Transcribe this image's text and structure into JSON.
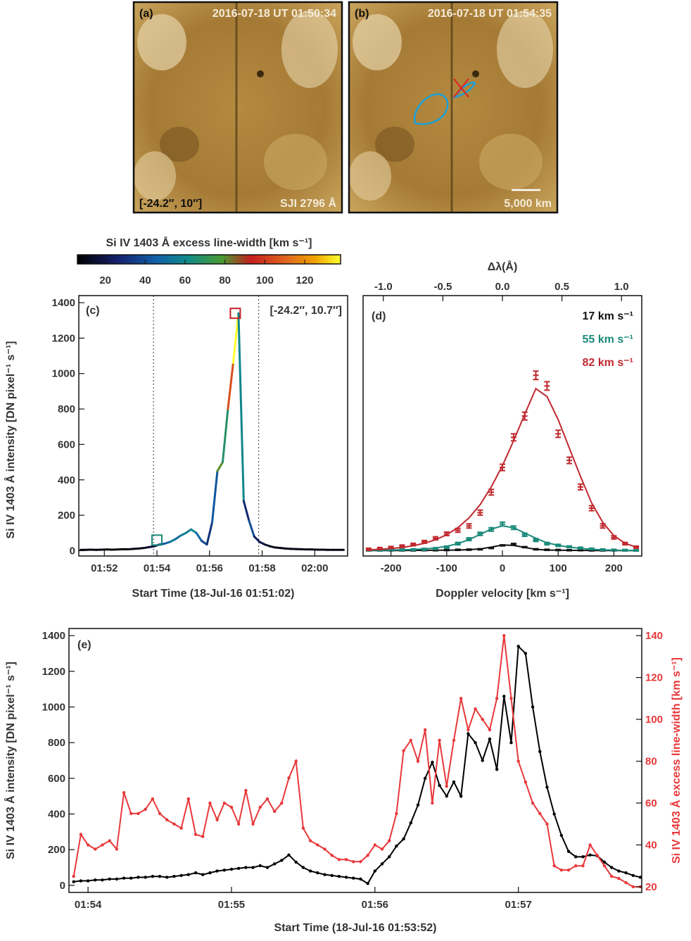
{
  "images": [
    {
      "label": "(a)",
      "time": "2016-07-18 UT 01:50:34",
      "coords": "[-24.2″, 10″]",
      "channel": "SJI 2796 Å"
    },
    {
      "label": "(b)",
      "time": "2016-07-18 UT 01:54:35",
      "scale": "5,000 km"
    }
  ],
  "colorbar": {
    "title": "Si IV 1403 Å excess line-width [km s⁻¹]",
    "lim": [
      6,
      138
    ],
    "ticks": [
      20,
      40,
      60,
      80,
      100,
      120
    ]
  },
  "chart_data": [
    {
      "type": "colorline",
      "label": "(c)",
      "annotation": "[-24.2″, 10.7″]",
      "ylabel": "Si IV 1403 Å intensity [DN pixel⁻¹ s⁻¹]",
      "xlabel": "Start Time (18-Jul-16 01:51:02)",
      "x": [
        51.1,
        51.3,
        51.5,
        51.7,
        51.9,
        52.1,
        52.3,
        52.5,
        52.7,
        52.9,
        53.1,
        53.3,
        53.5,
        53.7,
        53.9,
        54.1,
        54.3,
        54.5,
        54.7,
        54.9,
        55.1,
        55.3,
        55.5,
        55.7,
        55.9,
        56.1,
        56.3,
        56.5,
        56.7,
        56.9,
        57.1,
        57.3,
        57.5,
        57.7,
        57.9,
        58.1,
        58.3,
        58.5,
        58.7,
        58.9,
        59.1,
        59.3,
        59.5,
        59.7,
        59.9,
        60.1,
        60.3,
        60.5,
        60.7,
        60.9,
        61.1
      ],
      "values": [
        5,
        5,
        6,
        5,
        6,
        7,
        6,
        7,
        8,
        8,
        10,
        12,
        15,
        20,
        25,
        35,
        40,
        50,
        65,
        85,
        100,
        120,
        100,
        55,
        35,
        160,
        450,
        500,
        800,
        1060,
        1340,
        280,
        170,
        80,
        50,
        35,
        25,
        18,
        15,
        12,
        10,
        9,
        8,
        7,
        7,
        6,
        6,
        5,
        5,
        5,
        5
      ],
      "line_width": [
        8,
        8,
        8,
        8,
        8,
        8,
        8,
        8,
        8,
        8,
        10,
        10,
        12,
        15,
        20,
        40,
        45,
        55,
        50,
        55,
        58,
        60,
        48,
        38,
        32,
        42,
        80,
        68,
        105,
        140,
        60,
        28,
        40,
        24,
        20,
        15,
        12,
        10,
        10,
        10,
        10,
        10,
        10,
        10,
        10,
        10,
        10,
        10,
        10,
        10,
        10
      ],
      "xlim": [
        51.03,
        61.25
      ],
      "xticks": [
        {
          "value": 52,
          "label": "01:52"
        },
        {
          "value": 54,
          "label": "01:54"
        },
        {
          "value": 56,
          "label": "01:56"
        },
        {
          "value": 58,
          "label": "01:58"
        },
        {
          "value": 60,
          "label": "02:00"
        }
      ],
      "ylim": [
        -30,
        1440
      ],
      "yticks": [
        0,
        200,
        400,
        600,
        800,
        1000,
        1200,
        1400
      ],
      "vlines": [
        53.87,
        57.87
      ],
      "markers": [
        {
          "x": 54.0,
          "y": 60,
          "color": "#1a8a7a"
        },
        {
          "x": 56.98,
          "y": 1340,
          "color": "#c8202a"
        }
      ]
    },
    {
      "type": "errorbar",
      "label": "(d)",
      "xlabel": "Doppler velocity [km s⁻¹]",
      "x2label": "Δλ(Å)",
      "x": [
        -240,
        -220,
        -200,
        -180,
        -160,
        -140,
        -120,
        -100,
        -80,
        -60,
        -40,
        -20,
        0,
        20,
        40,
        60,
        80,
        100,
        120,
        140,
        160,
        180,
        200,
        220,
        240
      ],
      "series": [
        {
          "name": "17 km s⁻¹",
          "color": "#111111",
          "values": [
            2,
            2,
            2,
            2,
            2,
            3,
            3,
            4,
            5,
            6,
            8,
            15,
            30,
            38,
            20,
            8,
            5,
            4,
            3,
            3,
            2,
            2,
            2,
            2,
            2
          ],
          "errors": [
            3,
            3,
            3,
            3,
            3,
            3,
            3,
            3,
            3,
            3,
            3,
            3,
            3,
            3,
            3,
            3,
            3,
            3,
            3,
            3,
            3,
            3,
            3,
            3,
            3
          ],
          "fit": [
            1,
            1,
            1,
            1,
            2,
            2,
            3,
            3,
            4,
            6,
            10,
            20,
            32,
            30,
            18,
            8,
            4,
            3,
            2,
            2,
            1,
            1,
            1,
            1,
            1
          ]
        },
        {
          "name": "55 km s⁻¹",
          "color": "#1a8a7a",
          "values": [
            3,
            3,
            4,
            5,
            6,
            8,
            12,
            20,
            40,
            65,
            95,
            120,
            150,
            130,
            90,
            60,
            40,
            30,
            22,
            15,
            10,
            6,
            4,
            3,
            2
          ],
          "errors": [
            4,
            4,
            4,
            4,
            4,
            5,
            5,
            6,
            7,
            8,
            9,
            10,
            11,
            10,
            9,
            8,
            7,
            6,
            5,
            5,
            4,
            4,
            4,
            4,
            4
          ],
          "fit": [
            2,
            3,
            4,
            5,
            7,
            10,
            15,
            25,
            40,
            62,
            92,
            122,
            140,
            130,
            100,
            70,
            45,
            30,
            20,
            13,
            8,
            5,
            3,
            2,
            1
          ]
        },
        {
          "name": "82 km s⁻¹",
          "color": "#c0282e",
          "values": [
            8,
            12,
            18,
            25,
            35,
            50,
            70,
            95,
            115,
            140,
            215,
            330,
            470,
            640,
            760,
            990,
            930,
            660,
            510,
            360,
            240,
            140,
            75,
            40,
            20
          ],
          "errors": [
            6,
            6,
            6,
            7,
            7,
            8,
            9,
            10,
            11,
            12,
            14,
            16,
            18,
            20,
            22,
            24,
            24,
            20,
            18,
            16,
            14,
            12,
            9,
            7,
            6
          ],
          "fit": [
            5,
            8,
            12,
            18,
            28,
            42,
            62,
            90,
            130,
            185,
            260,
            360,
            480,
            620,
            770,
            915,
            870,
            740,
            580,
            420,
            270,
            160,
            85,
            42,
            20
          ]
        }
      ],
      "xlim": [
        -250,
        250
      ],
      "xticks": [
        -200,
        -100,
        0,
        100,
        200
      ],
      "x2lim": [
        -1.17,
        1.17
      ],
      "x2ticks": [
        {
          "value": -1,
          "label": "-1.0"
        },
        {
          "value": -0.5,
          "label": "-0.5"
        },
        {
          "value": 0,
          "label": "0.0"
        },
        {
          "value": 0.5,
          "label": "0.5"
        },
        {
          "value": 1,
          "label": "1.0"
        }
      ],
      "ylim": [
        -30,
        1440
      ]
    },
    {
      "type": "line",
      "label": "(e)",
      "ylabel": "Si IV 1403 Å intensity [DN pixel⁻¹ s⁻¹]",
      "y2label": "Si IV 1403 Å excess line-width [km s⁻¹]",
      "xlabel": "Start Time (18-Jul-16 01:53:52)",
      "x": [
        53.9,
        53.95,
        54.0,
        54.05,
        54.1,
        54.15,
        54.2,
        54.25,
        54.3,
        54.35,
        54.4,
        54.45,
        54.5,
        54.55,
        54.6,
        54.65,
        54.7,
        54.75,
        54.8,
        54.85,
        54.9,
        54.95,
        55.0,
        55.05,
        55.1,
        55.15,
        55.2,
        55.25,
        55.3,
        55.35,
        55.4,
        55.45,
        55.5,
        55.55,
        55.6,
        55.65,
        55.7,
        55.75,
        55.8,
        55.85,
        55.9,
        55.95,
        56.0,
        56.05,
        56.1,
        56.15,
        56.2,
        56.25,
        56.3,
        56.35,
        56.4,
        56.45,
        56.5,
        56.55,
        56.6,
        56.65,
        56.7,
        56.75,
        56.8,
        56.85,
        56.9,
        56.95,
        57.0,
        57.05,
        57.1,
        57.15,
        57.2,
        57.25,
        57.3,
        57.35,
        57.4,
        57.45,
        57.5,
        57.55,
        57.6,
        57.65,
        57.7,
        57.75,
        57.8,
        57.85
      ],
      "series": [
        {
          "color": "#000000",
          "values": [
            20,
            25,
            25,
            30,
            30,
            35,
            35,
            40,
            40,
            45,
            45,
            50,
            50,
            45,
            50,
            55,
            60,
            70,
            60,
            70,
            80,
            85,
            90,
            95,
            100,
            100,
            110,
            100,
            120,
            140,
            170,
            130,
            100,
            80,
            70,
            60,
            55,
            50,
            45,
            40,
            35,
            10,
            80,
            120,
            160,
            220,
            260,
            350,
            450,
            600,
            690,
            560,
            500,
            580,
            500,
            850,
            800,
            700,
            820,
            650,
            1060,
            800,
            1340,
            1300,
            1000,
            750,
            550,
            400,
            280,
            190,
            160,
            160,
            170,
            165,
            130,
            100,
            80,
            70,
            55,
            45
          ]
        },
        {
          "color": "#e8383a",
          "axis": "y2",
          "values": [
            25,
            45,
            40,
            38,
            40,
            42,
            38,
            65,
            55,
            55,
            57,
            62,
            55,
            52,
            50,
            48,
            62,
            45,
            44,
            60,
            52,
            60,
            58,
            50,
            66,
            50,
            58,
            62,
            56,
            60,
            72,
            80,
            48,
            42,
            40,
            38,
            35,
            33,
            33,
            32,
            32,
            35,
            40,
            38,
            42,
            55,
            85,
            90,
            80,
            95,
            60,
            90,
            68,
            90,
            110,
            95,
            105,
            100,
            95,
            110,
            140,
            110,
            80,
            70,
            60,
            55,
            50,
            30,
            28,
            28,
            30,
            30,
            40,
            35,
            30,
            25,
            24,
            22,
            20,
            20
          ]
        }
      ],
      "xlim": [
        53.867,
        57.86
      ],
      "xticks": [
        {
          "value": 54,
          "label": "01:54"
        },
        {
          "value": 55,
          "label": "01:55"
        },
        {
          "value": 56,
          "label": "01:56"
        },
        {
          "value": 57,
          "label": "01:57"
        }
      ],
      "ylim": [
        -40,
        1440
      ],
      "yticks": [
        0,
        200,
        400,
        600,
        800,
        1000,
        1200,
        1400
      ],
      "y2lim": [
        17.3,
        143.4
      ],
      "y2ticks": [
        20,
        40,
        60,
        80,
        100,
        120,
        140
      ]
    }
  ]
}
